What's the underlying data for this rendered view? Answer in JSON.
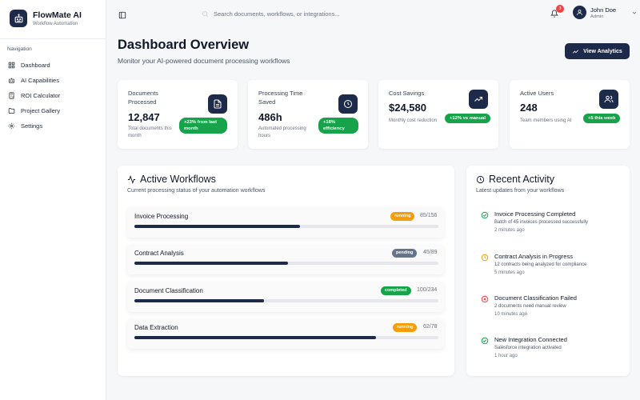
{
  "app": {
    "name": "FlowMate AI",
    "subtitle": "Workflow Automation"
  },
  "sidebar": {
    "section_label": "Navigation",
    "items": [
      {
        "label": "Dashboard",
        "icon": "grid-icon"
      },
      {
        "label": "AI Capabilities",
        "icon": "bot-icon"
      },
      {
        "label": "ROI Calculator",
        "icon": "calculator-icon"
      },
      {
        "label": "Project Gallery",
        "icon": "folder-icon"
      },
      {
        "label": "Settings",
        "icon": "gear-icon"
      }
    ]
  },
  "header": {
    "search_placeholder": "Search documents, workflows, or integrations...",
    "notification_count": "3",
    "user": {
      "name": "John Doe",
      "role": "Admin"
    }
  },
  "page": {
    "title": "Dashboard Overview",
    "subtitle": "Monitor your AI-powered document processing workflows",
    "analytics_button": "View Analytics"
  },
  "stats": [
    {
      "label": "Documents Processed",
      "value": "12,847",
      "note": "Total documents this month",
      "badge": "+23% from last month",
      "icon": "document-icon"
    },
    {
      "label": "Processing Time Saved",
      "value": "486h",
      "note": "Automated processing hours",
      "badge": "+18% efficiency",
      "icon": "clock-icon"
    },
    {
      "label": "Cost Savings",
      "value": "$24,580",
      "note": "Monthly cost reduction",
      "badge": "+12% vs manual",
      "icon": "trending-up-icon"
    },
    {
      "label": "Active Users",
      "value": "248",
      "note": "Team members using AI",
      "badge": "+5 this week",
      "icon": "users-icon"
    }
  ],
  "workflows": {
    "title": "Active Workflows",
    "subtitle": "Current processing status of your automation workflows",
    "items": [
      {
        "name": "Invoice Processing",
        "status": "running",
        "done": 85,
        "total": 156,
        "count": "85/156"
      },
      {
        "name": "Contract Analysis",
        "status": "pending",
        "done": 45,
        "total": 89,
        "count": "45/89"
      },
      {
        "name": "Document Classification",
        "status": "completed",
        "done": 100,
        "total": 234,
        "count": "100/234"
      },
      {
        "name": "Data Extraction",
        "status": "running",
        "done": 62,
        "total": 78,
        "count": "62/78"
      }
    ]
  },
  "activity": {
    "title": "Recent Activity",
    "subtitle": "Latest updates from your workflows",
    "items": [
      {
        "title": "Invoice Processing Completed",
        "desc": "Batch of 45 invoices processed successfully",
        "time": "2 minutes ago",
        "kind": "success"
      },
      {
        "title": "Contract Analysis in Progress",
        "desc": "12 contracts being analyzed for compliance",
        "time": "5 minutes ago",
        "kind": "progress"
      },
      {
        "title": "Document Classification Failed",
        "desc": "2 documents need manual review",
        "time": "10 minutes ago",
        "kind": "error"
      },
      {
        "title": "New Integration Connected",
        "desc": "Salesforce integration activated",
        "time": "1 hour ago",
        "kind": "success"
      }
    ]
  },
  "colors": {
    "primary": "#1e2a4a",
    "success": "#16a34a",
    "running": "#f59e0b",
    "pending": "#64748b",
    "error": "#ef4444",
    "progress_track": "#e5e7eb"
  }
}
